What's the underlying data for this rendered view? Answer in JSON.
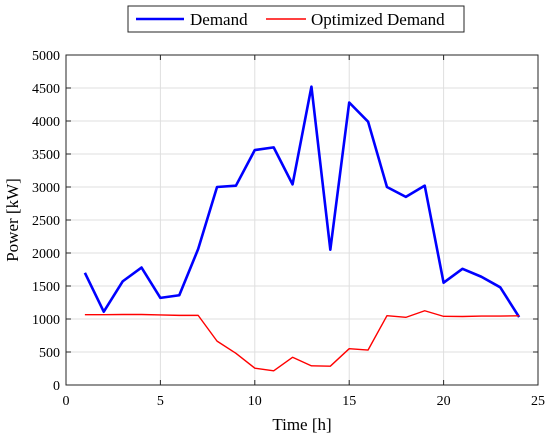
{
  "chart_data": {
    "type": "line",
    "title": "",
    "xlabel": "Time [h]",
    "ylabel": "Power [kW]",
    "xlim": [
      0,
      25
    ],
    "ylim": [
      0,
      5000
    ],
    "grid": true,
    "legend_position": "top-center",
    "x_ticks": [
      0,
      5,
      10,
      15,
      20,
      25
    ],
    "y_ticks": [
      0,
      500,
      1000,
      1500,
      2000,
      2500,
      3000,
      3500,
      4000,
      4500,
      5000
    ],
    "x": [
      1,
      2,
      3,
      4,
      5,
      6,
      7,
      8,
      9,
      10,
      11,
      12,
      13,
      14,
      15,
      16,
      17,
      18,
      19,
      20,
      21,
      22,
      23,
      24
    ],
    "series": [
      {
        "name": "Demand",
        "color": "#0000ff",
        "values": [
          1700,
          1110,
          1570,
          1780,
          1320,
          1360,
          2060,
          3000,
          3020,
          3560,
          3600,
          3040,
          4520,
          2050,
          4280,
          3990,
          3000,
          2850,
          3020,
          1550,
          1760,
          1640,
          1480,
          1030
        ]
      },
      {
        "name": "Optimized Demand",
        "color": "#ff0000",
        "values": [
          1065,
          1065,
          1068,
          1068,
          1062,
          1055,
          1055,
          665,
          480,
          255,
          215,
          420,
          290,
          285,
          550,
          530,
          1050,
          1025,
          1125,
          1040,
          1038,
          1045,
          1045,
          1048
        ]
      }
    ]
  }
}
